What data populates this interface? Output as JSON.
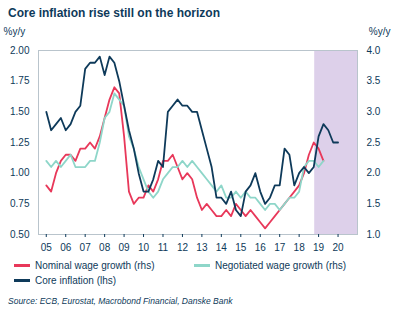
{
  "chart_data": {
    "type": "line",
    "title": "Core inflation rise still on the horizon",
    "ylabel": "%y/y",
    "y2label": "%y/y",
    "source": "Source: ECB, Eurostat, Macrobond Financial, Danske Bank",
    "x": [
      2005.0,
      2005.25,
      2005.5,
      2005.75,
      2006.0,
      2006.25,
      2006.5,
      2006.75,
      2007.0,
      2007.25,
      2007.5,
      2007.75,
      2008.0,
      2008.25,
      2008.5,
      2008.75,
      2009.0,
      2009.25,
      2009.5,
      2009.75,
      2010.0,
      2010.25,
      2010.5,
      2010.75,
      2011.0,
      2011.25,
      2011.5,
      2011.75,
      2012.0,
      2012.25,
      2012.5,
      2012.75,
      2013.0,
      2013.25,
      2013.5,
      2013.75,
      2014.0,
      2014.25,
      2014.5,
      2014.75,
      2015.0,
      2015.25,
      2015.5,
      2015.75,
      2016.0,
      2016.25,
      2016.5,
      2016.75,
      2017.0,
      2017.25,
      2017.5,
      2017.75,
      2018.0,
      2018.25,
      2018.5,
      2018.75,
      2019.0,
      2019.25,
      2019.5,
      2019.75,
      2020.0
    ],
    "xlim": [
      2004.6,
      2021
    ],
    "xticks": [
      {
        "value": 2005,
        "label": "05"
      },
      {
        "value": 2006,
        "label": "06"
      },
      {
        "value": 2007,
        "label": "07"
      },
      {
        "value": 2008,
        "label": "08"
      },
      {
        "value": 2009,
        "label": "09"
      },
      {
        "value": 2010,
        "label": "10"
      },
      {
        "value": 2011,
        "label": "11"
      },
      {
        "value": 2012,
        "label": "12"
      },
      {
        "value": 2013,
        "label": "13"
      },
      {
        "value": 2014,
        "label": "14"
      },
      {
        "value": 2015,
        "label": "15"
      },
      {
        "value": 2016,
        "label": "16"
      },
      {
        "value": 2017,
        "label": "17"
      },
      {
        "value": 2018,
        "label": "18"
      },
      {
        "value": 2019,
        "label": "19"
      },
      {
        "value": 2020,
        "label": "20"
      }
    ],
    "ylim": [
      0.5,
      2.0
    ],
    "yticks": [
      {
        "value": 0.5,
        "label": "0.50"
      },
      0.75,
      {
        "value": 1.0,
        "label": "1.00"
      },
      1.25,
      {
        "value": 1.5,
        "label": "1.50"
      },
      1.75,
      {
        "value": 2.0,
        "label": "2.00"
      }
    ],
    "y2lim": [
      1.0,
      4.0
    ],
    "y2ticks": [
      {
        "value": 1.0,
        "label": "1.0"
      },
      1.5,
      {
        "value": 2.0,
        "label": "2.0"
      },
      2.5,
      {
        "value": 3.0,
        "label": "3.0"
      },
      3.5,
      {
        "value": 4.0,
        "label": "4.0"
      }
    ],
    "grid": false,
    "highlight": {
      "x": [
        2018.8,
        2021
      ],
      "color": "#ddd0ea"
    },
    "series": [
      {
        "name": "Nominal wage growth (rhs)",
        "color": "#e8385a",
        "axis": "y2",
        "values": [
          1.8,
          1.7,
          2.0,
          2.2,
          2.3,
          2.3,
          2.2,
          2.4,
          2.4,
          2.5,
          2.4,
          2.6,
          2.9,
          3.2,
          3.4,
          3.3,
          2.6,
          1.7,
          1.5,
          1.6,
          1.6,
          1.8,
          1.7,
          1.9,
          2.2,
          2.2,
          2.3,
          2.1,
          1.9,
          2.0,
          1.9,
          1.6,
          1.4,
          1.5,
          1.4,
          1.3,
          1.3,
          1.4,
          1.3,
          1.5,
          1.4,
          1.3,
          1.4,
          1.3,
          1.2,
          1.1,
          1.2,
          1.3,
          1.4,
          1.5,
          1.6,
          1.7,
          1.8,
          2.0,
          2.3,
          2.5,
          2.4,
          2.2,
          null,
          null,
          null
        ]
      },
      {
        "name": "Negotiated wage growth (rhs)",
        "color": "#8ed6c9",
        "axis": "y2",
        "values": [
          2.2,
          2.1,
          2.2,
          2.1,
          2.2,
          2.3,
          2.1,
          2.1,
          2.1,
          2.2,
          2.2,
          2.5,
          2.9,
          3.0,
          3.3,
          3.2,
          3.1,
          2.6,
          2.4,
          2.1,
          1.9,
          1.7,
          1.6,
          1.7,
          1.9,
          2.0,
          2.1,
          2.1,
          2.2,
          2.1,
          2.2,
          2.1,
          2.0,
          1.9,
          1.8,
          1.7,
          1.8,
          1.6,
          1.6,
          1.7,
          1.6,
          1.7,
          1.6,
          1.6,
          1.5,
          1.4,
          1.5,
          1.5,
          1.4,
          1.5,
          1.6,
          1.6,
          1.7,
          2.1,
          2.2,
          2.2,
          2.1,
          2.2,
          null,
          null,
          null
        ]
      },
      {
        "name": "Core inflation (lhs)",
        "color": "#0e3a5a",
        "axis": "y",
        "values": [
          1.5,
          1.35,
          1.4,
          1.45,
          1.35,
          1.4,
          1.5,
          1.55,
          1.85,
          1.9,
          1.9,
          1.95,
          1.8,
          1.95,
          1.9,
          1.75,
          1.55,
          1.35,
          1.2,
          1.0,
          0.85,
          0.85,
          0.95,
          1.1,
          1.05,
          1.5,
          1.55,
          1.6,
          1.55,
          1.55,
          1.5,
          1.5,
          1.35,
          1.2,
          1.05,
          0.8,
          0.8,
          0.75,
          0.85,
          0.7,
          0.65,
          0.85,
          0.9,
          1.0,
          0.85,
          0.75,
          0.8,
          0.9,
          0.9,
          1.2,
          1.15,
          0.9,
          1.0,
          1.05,
          1.0,
          1.05,
          1.3,
          1.4,
          1.35,
          1.25,
          1.25
        ]
      }
    ]
  }
}
